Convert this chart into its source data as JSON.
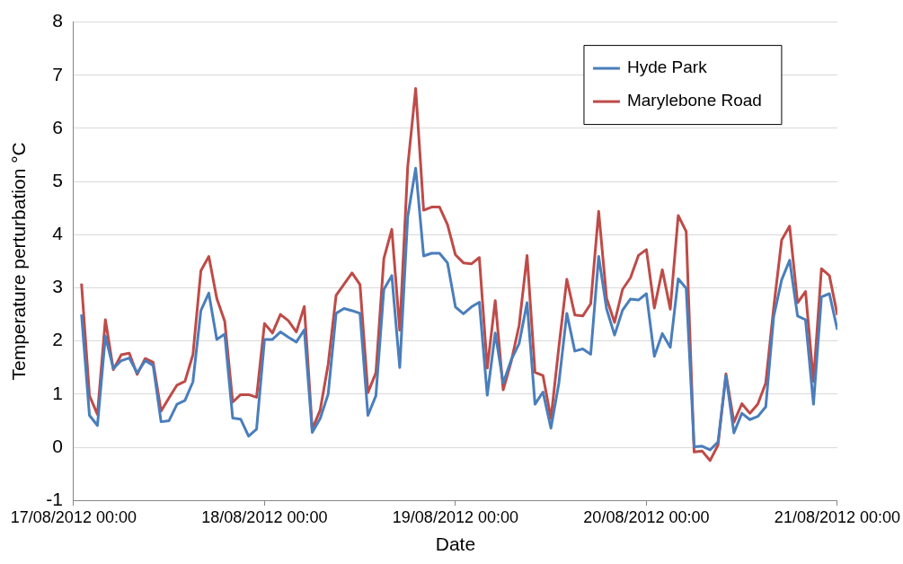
{
  "chart_data": {
    "type": "line",
    "xlabel": "Date",
    "ylabel": "Temperature perturbation °C",
    "x": [
      "2012-08-17T01:00",
      "2012-08-17T02:00",
      "2012-08-17T03:00",
      "2012-08-17T04:00",
      "2012-08-17T05:00",
      "2012-08-17T06:00",
      "2012-08-17T07:00",
      "2012-08-17T08:00",
      "2012-08-17T09:00",
      "2012-08-17T10:00",
      "2012-08-17T11:00",
      "2012-08-17T12:00",
      "2012-08-17T13:00",
      "2012-08-17T14:00",
      "2012-08-17T15:00",
      "2012-08-17T16:00",
      "2012-08-17T17:00",
      "2012-08-17T18:00",
      "2012-08-17T19:00",
      "2012-08-17T20:00",
      "2012-08-17T21:00",
      "2012-08-17T22:00",
      "2012-08-17T23:00",
      "2012-08-18T00:00",
      "2012-08-18T01:00",
      "2012-08-18T02:00",
      "2012-08-18T03:00",
      "2012-08-18T04:00",
      "2012-08-18T05:00",
      "2012-08-18T06:00",
      "2012-08-18T07:00",
      "2012-08-18T08:00",
      "2012-08-18T09:00",
      "2012-08-18T10:00",
      "2012-08-18T11:00",
      "2012-08-18T12:00",
      "2012-08-18T13:00",
      "2012-08-18T14:00",
      "2012-08-18T15:00",
      "2012-08-18T16:00",
      "2012-08-18T17:00",
      "2012-08-18T18:00",
      "2012-08-18T19:00",
      "2012-08-18T20:00",
      "2012-08-18T21:00",
      "2012-08-18T22:00",
      "2012-08-18T23:00",
      "2012-08-19T00:00",
      "2012-08-19T01:00",
      "2012-08-19T02:00",
      "2012-08-19T03:00",
      "2012-08-19T04:00",
      "2012-08-19T05:00",
      "2012-08-19T06:00",
      "2012-08-19T07:00",
      "2012-08-19T08:00",
      "2012-08-19T09:00",
      "2012-08-19T10:00",
      "2012-08-19T11:00",
      "2012-08-19T12:00",
      "2012-08-19T13:00",
      "2012-08-19T14:00",
      "2012-08-19T15:00",
      "2012-08-19T16:00",
      "2012-08-19T17:00",
      "2012-08-19T18:00",
      "2012-08-19T19:00",
      "2012-08-19T20:00",
      "2012-08-19T21:00",
      "2012-08-19T22:00",
      "2012-08-19T23:00",
      "2012-08-20T00:00",
      "2012-08-20T01:00",
      "2012-08-20T02:00",
      "2012-08-20T03:00",
      "2012-08-20T04:00",
      "2012-08-20T05:00",
      "2012-08-20T06:00",
      "2012-08-20T07:00",
      "2012-08-20T08:00",
      "2012-08-20T09:00",
      "2012-08-20T10:00",
      "2012-08-20T11:00",
      "2012-08-20T12:00",
      "2012-08-20T13:00",
      "2012-08-20T14:00",
      "2012-08-20T15:00",
      "2012-08-20T16:00",
      "2012-08-20T17:00",
      "2012-08-20T18:00",
      "2012-08-20T19:00",
      "2012-08-20T20:00",
      "2012-08-20T21:00",
      "2012-08-20T22:00",
      "2012-08-20T23:00",
      "2012-08-21T00:00"
    ],
    "series": [
      {
        "name": "Hyde Park",
        "color": "#4a7ebb",
        "values": [
          2.5,
          0.6,
          0.41,
          2.09,
          1.48,
          1.63,
          1.68,
          1.4,
          1.63,
          1.54,
          0.48,
          0.5,
          0.81,
          0.88,
          1.23,
          2.57,
          2.9,
          2.03,
          2.13,
          0.55,
          0.53,
          0.21,
          0.34,
          2.03,
          2.03,
          2.17,
          2.07,
          1.98,
          2.21,
          0.28,
          0.54,
          1.0,
          2.52,
          2.61,
          2.57,
          2.52,
          0.6,
          0.97,
          2.97,
          3.23,
          1.5,
          4.34,
          5.25,
          3.6,
          3.65,
          3.65,
          3.47,
          2.64,
          2.51,
          2.64,
          2.73,
          0.98,
          2.15,
          1.21,
          1.64,
          1.95,
          2.72,
          0.81,
          1.04,
          0.36,
          1.21,
          2.52,
          1.81,
          1.85,
          1.75,
          3.59,
          2.6,
          2.11,
          2.58,
          2.79,
          2.77,
          2.89,
          1.71,
          2.14,
          1.88,
          3.17,
          2.99,
          0.01,
          0.02,
          -0.05,
          0.1,
          1.35,
          0.27,
          0.64,
          0.52,
          0.58,
          0.76,
          2.46,
          3.15,
          3.52,
          2.47,
          2.4,
          0.81,
          2.83,
          2.89,
          2.21
        ]
      },
      {
        "name": "Marylebone Road",
        "color": "#be4b48",
        "values": [
          3.08,
          0.97,
          0.62,
          2.4,
          1.46,
          1.74,
          1.77,
          1.37,
          1.67,
          1.6,
          0.68,
          0.93,
          1.17,
          1.24,
          1.74,
          3.32,
          3.59,
          2.8,
          2.37,
          0.85,
          0.99,
          0.99,
          0.94,
          2.33,
          2.15,
          2.5,
          2.38,
          2.17,
          2.65,
          0.34,
          0.7,
          1.56,
          2.86,
          3.07,
          3.28,
          3.06,
          1.03,
          1.4,
          3.55,
          4.1,
          2.2,
          5.28,
          6.75,
          4.46,
          4.52,
          4.52,
          4.19,
          3.62,
          3.47,
          3.45,
          3.57,
          1.49,
          2.76,
          1.08,
          1.61,
          2.29,
          3.61,
          1.41,
          1.35,
          0.54,
          1.89,
          3.16,
          2.49,
          2.47,
          2.7,
          4.44,
          2.8,
          2.35,
          2.97,
          3.19,
          3.61,
          3.72,
          2.62,
          3.34,
          2.6,
          4.36,
          4.06,
          -0.09,
          -0.07,
          -0.25,
          0.04,
          1.38,
          0.47,
          0.82,
          0.64,
          0.81,
          1.21,
          2.63,
          3.9,
          4.16,
          2.72,
          2.93,
          1.24,
          3.36,
          3.23,
          2.49
        ]
      }
    ],
    "xlim": [
      "2012-08-17T00:00",
      "2012-08-21T00:00"
    ],
    "xticks": [
      {
        "value": "2012-08-17T00:00",
        "label": "17/08/2012 00:00"
      },
      {
        "value": "2012-08-18T00:00",
        "label": "18/08/2012 00:00"
      },
      {
        "value": "2012-08-19T00:00",
        "label": "19/08/2012 00:00"
      },
      {
        "value": "2012-08-20T00:00",
        "label": "20/08/2012 00:00"
      },
      {
        "value": "2012-08-21T00:00",
        "label": "21/08/2012 00:00"
      }
    ],
    "ylim": [
      -1,
      8
    ],
    "yticks": [
      -1,
      0,
      1,
      2,
      3,
      4,
      5,
      6,
      7,
      8
    ],
    "grid": "y",
    "legend": "top right",
    "marker": "none",
    "line_style": "solid"
  }
}
